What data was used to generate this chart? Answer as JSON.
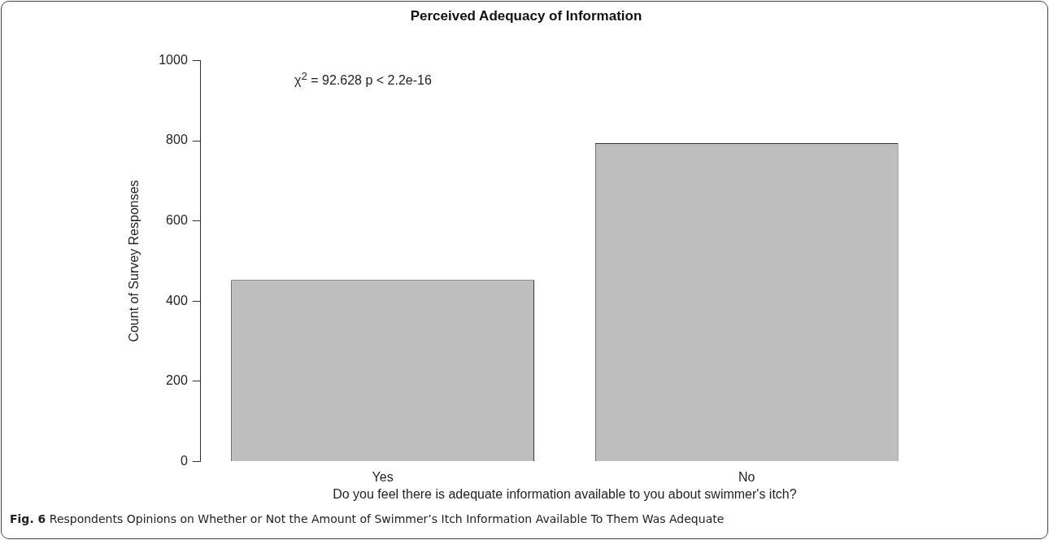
{
  "chart_data": {
    "type": "bar",
    "title": "Perceived Adequacy of Information",
    "xlabel": "Do you feel there is adequate information available to you about swimmer's itch?",
    "ylabel": "Count of Survey Responses",
    "categories": [
      "Yes",
      "No"
    ],
    "values": [
      453,
      794
    ],
    "color": "#bebebe",
    "ylim": [
      0,
      1000
    ],
    "yticks": [
      0,
      200,
      400,
      600,
      800,
      1000
    ],
    "grid": false,
    "legend": false,
    "annotations": [
      "χ$^{2}$ = 92.628    p < 2.2e-16",
      "Fig. 6",
      "Respondents Opinions on Whether or Not the Amount of Swimmer’s Itch Information Available To Them Was Adequate"
    ]
  }
}
